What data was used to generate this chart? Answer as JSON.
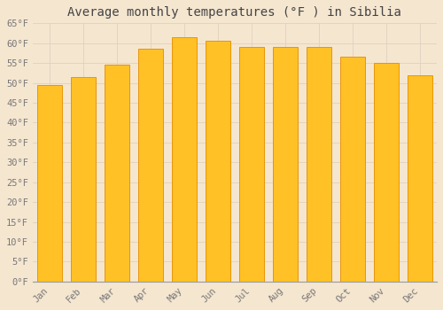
{
  "title": "Average monthly temperatures (°F ) in Sibilia",
  "months": [
    "Jan",
    "Feb",
    "Mar",
    "Apr",
    "May",
    "Jun",
    "Jul",
    "Aug",
    "Sep",
    "Oct",
    "Nov",
    "Dec"
  ],
  "values": [
    49.5,
    51.5,
    54.5,
    58.5,
    61.5,
    60.5,
    59.0,
    59.0,
    59.0,
    56.5,
    55.0,
    52.0
  ],
  "bar_color": "#FFC125",
  "bar_edge_color": "#E8960A",
  "background_color": "#F5E6D0",
  "plot_bg_color": "#F5E6D0",
  "grid_color": "#E0D0C0",
  "text_color": "#777777",
  "ylim": [
    0,
    65
  ],
  "yticks": [
    0,
    5,
    10,
    15,
    20,
    25,
    30,
    35,
    40,
    45,
    50,
    55,
    60,
    65
  ],
  "title_fontsize": 10,
  "tick_fontsize": 7.5
}
